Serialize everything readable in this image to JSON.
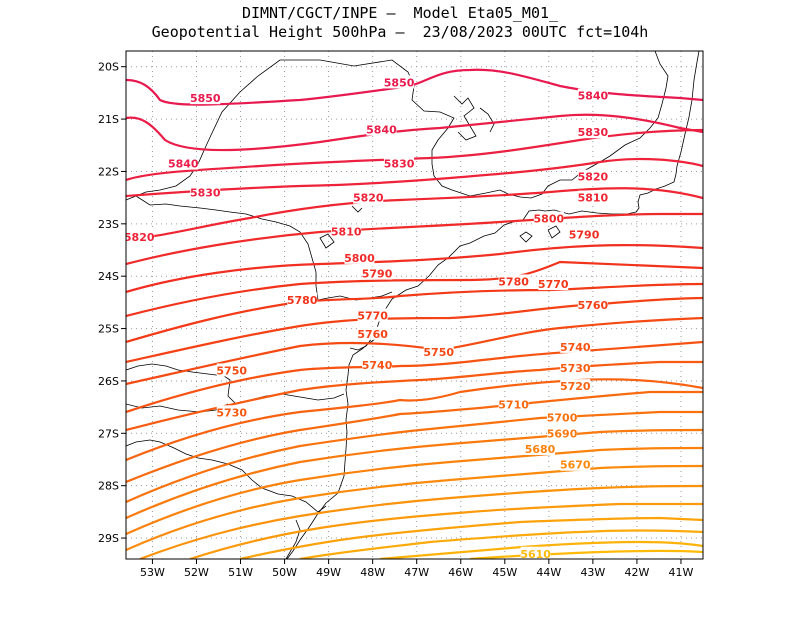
{
  "title": {
    "line1": "DIMNT/CGCT/INPE –  Model Eta05_M01_",
    "line2": "Geopotential Height 500hPa –  23/08/2023 00UTC fct=104h"
  },
  "map": {
    "lon_range": [
      -53.6,
      -40.5
    ],
    "lat_range": [
      -29.4,
      -19.7
    ],
    "lon_ticks": [
      {
        "value": -53,
        "label": "53W"
      },
      {
        "value": -52,
        "label": "52W"
      },
      {
        "value": -51,
        "label": "51W"
      },
      {
        "value": -50,
        "label": "50W"
      },
      {
        "value": -49,
        "label": "49W"
      },
      {
        "value": -48,
        "label": "48W"
      },
      {
        "value": -47,
        "label": "47W"
      },
      {
        "value": -46,
        "label": "46W"
      },
      {
        "value": -45,
        "label": "45W"
      },
      {
        "value": -44,
        "label": "44W"
      },
      {
        "value": -43,
        "label": "43W"
      },
      {
        "value": -42,
        "label": "42W"
      },
      {
        "value": -41,
        "label": "41W"
      }
    ],
    "lat_ticks": [
      {
        "value": -20,
        "label": "20S"
      },
      {
        "value": -21,
        "label": "21S"
      },
      {
        "value": -22,
        "label": "22S"
      },
      {
        "value": -23,
        "label": "23S"
      },
      {
        "value": -24,
        "label": "24S"
      },
      {
        "value": -25,
        "label": "25S"
      },
      {
        "value": -26,
        "label": "26S"
      },
      {
        "value": -27,
        "label": "27S"
      },
      {
        "value": -28,
        "label": "28S"
      },
      {
        "value": -29,
        "label": "29S"
      }
    ],
    "contour_labels": [
      {
        "text": "5850",
        "lon": -51.8,
        "lat": -20.6
      },
      {
        "text": "5850",
        "lon": -47.4,
        "lat": -20.3
      },
      {
        "text": "5840",
        "lon": -43.0,
        "lat": -20.55
      },
      {
        "text": "5840",
        "lon": -47.8,
        "lat": -21.2
      },
      {
        "text": "5840",
        "lon": -52.3,
        "lat": -21.85
      },
      {
        "text": "5830",
        "lon": -43.0,
        "lat": -21.25
      },
      {
        "text": "5830",
        "lon": -47.4,
        "lat": -21.85
      },
      {
        "text": "5830",
        "lon": -51.8,
        "lat": -22.4
      },
      {
        "text": "5820",
        "lon": -43.0,
        "lat": -22.1
      },
      {
        "text": "5820",
        "lon": -48.1,
        "lat": -22.5
      },
      {
        "text": "5820",
        "lon": -53.3,
        "lat": -23.25
      },
      {
        "text": "5810",
        "lon": -43.0,
        "lat": -22.5
      },
      {
        "text": "5810",
        "lon": -48.6,
        "lat": -23.15
      },
      {
        "text": "5800",
        "lon": -44.0,
        "lat": -22.9
      },
      {
        "text": "5800",
        "lon": -48.3,
        "lat": -23.65
      },
      {
        "text": "5790",
        "lon": -43.2,
        "lat": -23.2
      },
      {
        "text": "5790",
        "lon": -47.9,
        "lat": -23.95
      },
      {
        "text": "5780",
        "lon": -44.8,
        "lat": -24.1
      },
      {
        "text": "5780",
        "lon": -49.6,
        "lat": -24.45
      },
      {
        "text": "5770",
        "lon": -43.9,
        "lat": -24.15
      },
      {
        "text": "5770",
        "lon": -48.0,
        "lat": -24.75
      },
      {
        "text": "5760",
        "lon": -43.0,
        "lat": -24.55
      },
      {
        "text": "5760",
        "lon": -48.0,
        "lat": -25.1
      },
      {
        "text": "5750",
        "lon": -46.5,
        "lat": -25.45
      },
      {
        "text": "5750",
        "lon": -51.2,
        "lat": -25.8
      },
      {
        "text": "5740",
        "lon": -43.4,
        "lat": -25.35
      },
      {
        "text": "5740",
        "lon": -47.9,
        "lat": -25.7
      },
      {
        "text": "5730",
        "lon": -43.4,
        "lat": -25.75
      },
      {
        "text": "5730",
        "lon": -51.2,
        "lat": -26.6
      },
      {
        "text": "5720",
        "lon": -43.4,
        "lat": -26.1
      },
      {
        "text": "5710",
        "lon": -44.8,
        "lat": -26.45
      },
      {
        "text": "5700",
        "lon": -43.7,
        "lat": -26.7
      },
      {
        "text": "5690",
        "lon": -43.7,
        "lat": -27.0
      },
      {
        "text": "5680",
        "lon": -44.2,
        "lat": -27.3
      },
      {
        "text": "5670",
        "lon": -43.4,
        "lat": -27.6
      },
      {
        "text": "5610",
        "lon": -44.3,
        "lat": -29.3
      }
    ]
  },
  "colors": {
    "c5850": "#e8194f",
    "c5840": "#ea1c48",
    "c5830": "#ec2040",
    "c5820": "#ee2339",
    "c5810": "#ef2632",
    "c5800": "#f02a2a",
    "c5790": "#f12e22",
    "c5780": "#f2331c",
    "c5770": "#f33a18",
    "c5760": "#f44216",
    "c5750": "#f54a14",
    "c5740": "#f65212",
    "c5730": "#f75a11",
    "c5720": "#f86210",
    "c5710": "#f86a0f",
    "c5700": "#f9720e",
    "c5690": "#fa7a0e",
    "c5680": "#fa820d",
    "c5670": "#fb8a0d",
    "c5660": "#fb920c",
    "c5650": "#fc9a0c",
    "c5640": "#fca20b",
    "c5630": "#fcaa0b",
    "c5620": "#fdb20a",
    "c5610": "#fdba0a"
  }
}
